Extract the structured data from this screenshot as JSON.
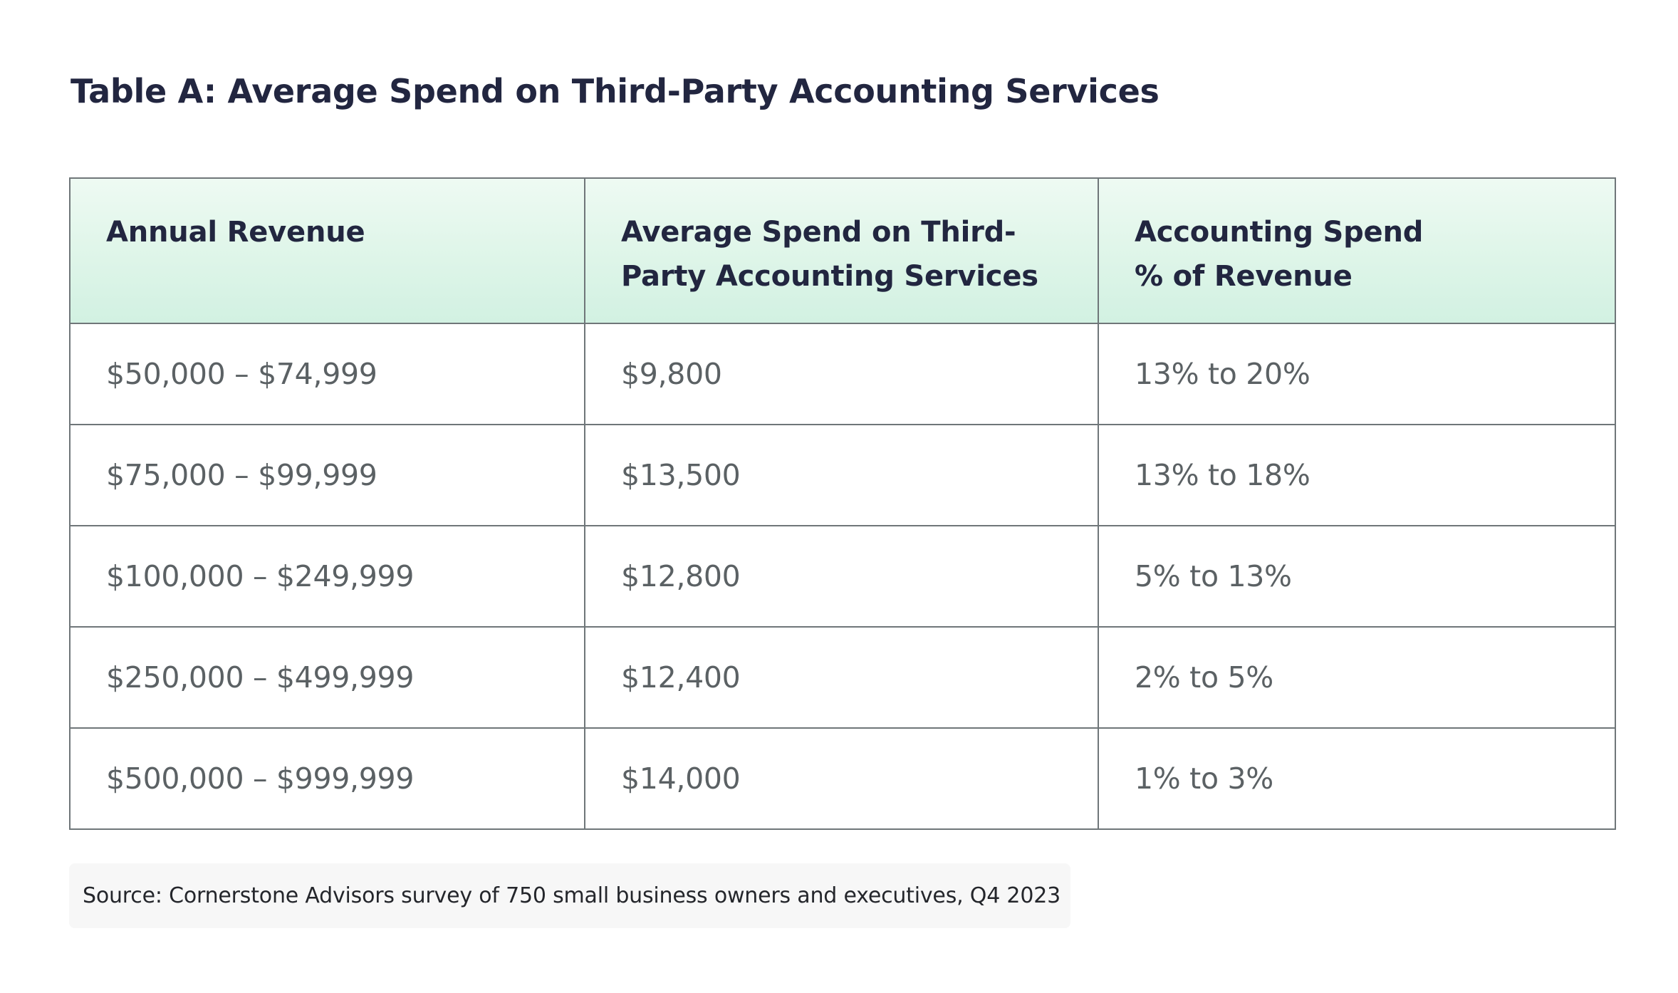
{
  "title": "Table A: Average Spend on Third-Party Accounting Services",
  "table": {
    "headers": [
      "Annual Revenue",
      "Average Spend on Third-Party Accounting Services",
      "Accounting Spend % of Revenue"
    ],
    "header_lines": [
      [
        "Annual Revenue"
      ],
      [
        "Average Spend on Third-",
        "Party Accounting Services"
      ],
      [
        "Accounting Spend",
        "% of Revenue"
      ]
    ],
    "rows": [
      [
        "$50,000 – $74,999",
        "$9,800",
        "13% to 20%"
      ],
      [
        "$75,000 – $99,999",
        "$13,500",
        "13% to 18%"
      ],
      [
        "$100,000 – $249,999",
        "$12,800",
        "5% to 13%"
      ],
      [
        "$250,000 – $499,999",
        "$12,400",
        "2% to 5%"
      ],
      [
        "$500,000 – $999,999",
        "$14,000",
        "1% to 3%"
      ]
    ]
  },
  "source": "Source: Cornerstone Advisors survey of 750 small business owners and executives, Q4 2023",
  "colors": {
    "header_bg": "#d9f4e6",
    "title_text": "#222640",
    "cell_text": "#5b6164",
    "border": "#6f7679",
    "source_bg": "#f7f7f7"
  }
}
